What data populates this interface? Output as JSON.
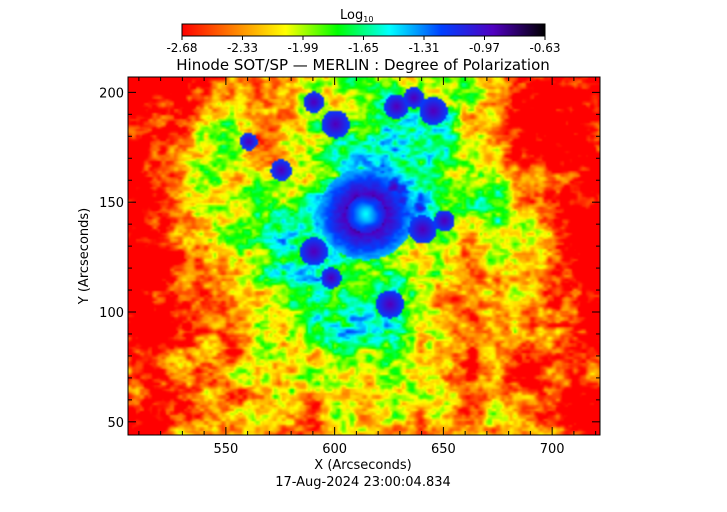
{
  "chart_data": {
    "type": "heatmap",
    "title": "Hinode SOT/SP — MERLIN : Degree of Polarization",
    "colorbar": {
      "label": "Log",
      "label_sub": "10",
      "ticks": [
        "-2.68",
        "-2.33",
        "-1.99",
        "-1.65",
        "-1.31",
        "-0.97",
        "-0.63"
      ],
      "range": [
        -2.68,
        -0.63
      ],
      "colormap": [
        "#ff0000",
        "#ff8000",
        "#ffff00",
        "#00ff00",
        "#00ffff",
        "#0040ff",
        "#5000c0",
        "#000000"
      ]
    },
    "xlabel": "X (Arcseconds)",
    "ylabel": "Y (Arcseconds)",
    "xlim": [
      505,
      722
    ],
    "ylim": [
      44,
      207
    ],
    "xticks": [
      550,
      600,
      650,
      700
    ],
    "yticks": [
      50,
      100,
      150,
      200
    ],
    "xtick_labels": [
      "550",
      "600",
      "650",
      "700"
    ],
    "ytick_labels": [
      "50",
      "100",
      "150",
      "200"
    ],
    "features": {
      "sunspot_center": [
        614,
        145
      ],
      "umbra_radius_arcsec": 9,
      "penumbra_radius_arcsec": 19
    },
    "timestamp": "17-Aug-2024 23:00:04.834"
  }
}
